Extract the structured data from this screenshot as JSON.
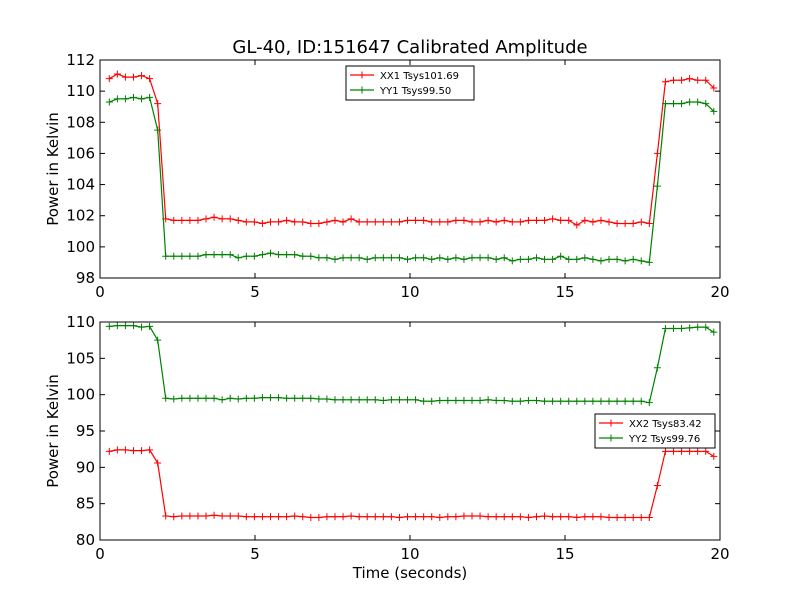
{
  "chart_data": [
    {
      "type": "line",
      "title": "GL-40, ID:151647 Calibrated Amplitude",
      "xlabel": "",
      "ylabel": "Power in Kelvin",
      "xlim": [
        0,
        20
      ],
      "ylim": [
        98,
        112
      ],
      "xticks": [
        0,
        5,
        10,
        15,
        20
      ],
      "yticks": [
        98,
        100,
        102,
        104,
        106,
        108,
        110,
        112
      ],
      "legend_position": "top-center",
      "grid": false,
      "series": [
        {
          "name": "XX1 Tsys101.69",
          "color": "#ff0000",
          "x": [
            0.3,
            0.56,
            0.82,
            1.08,
            1.34,
            1.6,
            1.86,
            2.12,
            2.38,
            2.64,
            2.9,
            3.16,
            3.42,
            3.68,
            3.94,
            4.2,
            4.46,
            4.72,
            4.98,
            5.24,
            5.5,
            5.76,
            6.02,
            6.28,
            6.54,
            6.8,
            7.06,
            7.32,
            7.58,
            7.84,
            8.1,
            8.36,
            8.62,
            8.88,
            9.14,
            9.4,
            9.66,
            9.92,
            10.18,
            10.44,
            10.7,
            10.96,
            11.22,
            11.48,
            11.74,
            12.0,
            12.26,
            12.52,
            12.78,
            13.04,
            13.3,
            13.56,
            13.82,
            14.08,
            14.34,
            14.6,
            14.86,
            15.12,
            15.38,
            15.64,
            15.9,
            16.16,
            16.42,
            16.68,
            16.94,
            17.2,
            17.46,
            17.72,
            17.98,
            18.24,
            18.5,
            18.76,
            19.02,
            19.28,
            19.54,
            19.8
          ],
          "values": [
            110.8,
            111.1,
            110.9,
            110.9,
            111.0,
            110.8,
            109.2,
            101.8,
            101.7,
            101.7,
            101.7,
            101.7,
            101.8,
            101.9,
            101.8,
            101.8,
            101.7,
            101.6,
            101.6,
            101.5,
            101.6,
            101.6,
            101.7,
            101.6,
            101.6,
            101.5,
            101.5,
            101.6,
            101.7,
            101.6,
            101.8,
            101.6,
            101.6,
            101.6,
            101.6,
            101.6,
            101.6,
            101.7,
            101.7,
            101.7,
            101.6,
            101.6,
            101.6,
            101.7,
            101.7,
            101.6,
            101.6,
            101.7,
            101.6,
            101.7,
            101.6,
            101.6,
            101.7,
            101.7,
            101.7,
            101.8,
            101.7,
            101.7,
            101.4,
            101.7,
            101.6,
            101.7,
            101.6,
            101.5,
            101.5,
            101.5,
            101.6,
            101.5,
            106.0,
            110.6,
            110.7,
            110.7,
            110.8,
            110.7,
            110.7,
            110.2
          ]
        },
        {
          "name": "YY1 Tsys99.50",
          "color": "#008000",
          "x": [
            0.3,
            0.56,
            0.82,
            1.08,
            1.34,
            1.6,
            1.86,
            2.12,
            2.38,
            2.64,
            2.9,
            3.16,
            3.42,
            3.68,
            3.94,
            4.2,
            4.46,
            4.72,
            4.98,
            5.24,
            5.5,
            5.76,
            6.02,
            6.28,
            6.54,
            6.8,
            7.06,
            7.32,
            7.58,
            7.84,
            8.1,
            8.36,
            8.62,
            8.88,
            9.14,
            9.4,
            9.66,
            9.92,
            10.18,
            10.44,
            10.7,
            10.96,
            11.22,
            11.48,
            11.74,
            12.0,
            12.26,
            12.52,
            12.78,
            13.04,
            13.3,
            13.56,
            13.82,
            14.08,
            14.34,
            14.6,
            14.86,
            15.12,
            15.38,
            15.64,
            15.9,
            16.16,
            16.42,
            16.68,
            16.94,
            17.2,
            17.46,
            17.72,
            17.98,
            18.24,
            18.5,
            18.76,
            19.02,
            19.28,
            19.54,
            19.8
          ],
          "values": [
            109.3,
            109.5,
            109.5,
            109.6,
            109.5,
            109.6,
            107.5,
            99.4,
            99.4,
            99.4,
            99.4,
            99.4,
            99.5,
            99.5,
            99.5,
            99.5,
            99.3,
            99.4,
            99.4,
            99.5,
            99.6,
            99.5,
            99.5,
            99.5,
            99.4,
            99.4,
            99.3,
            99.3,
            99.2,
            99.3,
            99.3,
            99.3,
            99.2,
            99.3,
            99.3,
            99.3,
            99.3,
            99.2,
            99.3,
            99.3,
            99.2,
            99.3,
            99.2,
            99.3,
            99.2,
            99.3,
            99.3,
            99.3,
            99.2,
            99.3,
            99.1,
            99.2,
            99.2,
            99.3,
            99.2,
            99.2,
            99.4,
            99.2,
            99.2,
            99.3,
            99.2,
            99.1,
            99.2,
            99.2,
            99.1,
            99.2,
            99.1,
            99.0,
            103.9,
            109.2,
            109.2,
            109.2,
            109.3,
            109.3,
            109.2,
            108.7
          ]
        }
      ]
    },
    {
      "type": "line",
      "title": "",
      "xlabel": "Time (seconds)",
      "ylabel": "Power in Kelvin",
      "xlim": [
        0,
        20
      ],
      "ylim": [
        80,
        110
      ],
      "xticks": [
        0,
        5,
        10,
        15,
        20
      ],
      "yticks": [
        80,
        85,
        90,
        95,
        100,
        105,
        110
      ],
      "legend_position": "center-right",
      "grid": false,
      "series": [
        {
          "name": "XX2 Tsys83.42",
          "color": "#ff0000",
          "x": [
            0.3,
            0.56,
            0.82,
            1.08,
            1.34,
            1.6,
            1.86,
            2.12,
            2.38,
            2.64,
            2.9,
            3.16,
            3.42,
            3.68,
            3.94,
            4.2,
            4.46,
            4.72,
            4.98,
            5.24,
            5.5,
            5.76,
            6.02,
            6.28,
            6.54,
            6.8,
            7.06,
            7.32,
            7.58,
            7.84,
            8.1,
            8.36,
            8.62,
            8.88,
            9.14,
            9.4,
            9.66,
            9.92,
            10.18,
            10.44,
            10.7,
            10.96,
            11.22,
            11.48,
            11.74,
            12.0,
            12.26,
            12.52,
            12.78,
            13.04,
            13.3,
            13.56,
            13.82,
            14.08,
            14.34,
            14.6,
            14.86,
            15.12,
            15.38,
            15.64,
            15.9,
            16.16,
            16.42,
            16.68,
            16.94,
            17.2,
            17.46,
            17.72,
            17.98,
            18.24,
            18.5,
            18.76,
            19.02,
            19.28,
            19.54,
            19.8
          ],
          "values": [
            92.2,
            92.4,
            92.4,
            92.3,
            92.3,
            92.4,
            90.6,
            83.3,
            83.2,
            83.3,
            83.3,
            83.3,
            83.3,
            83.4,
            83.3,
            83.3,
            83.3,
            83.2,
            83.2,
            83.2,
            83.2,
            83.2,
            83.2,
            83.3,
            83.2,
            83.1,
            83.1,
            83.2,
            83.2,
            83.2,
            83.3,
            83.2,
            83.2,
            83.2,
            83.2,
            83.2,
            83.1,
            83.2,
            83.2,
            83.2,
            83.2,
            83.1,
            83.2,
            83.2,
            83.3,
            83.3,
            83.3,
            83.2,
            83.2,
            83.2,
            83.2,
            83.2,
            83.1,
            83.2,
            83.3,
            83.2,
            83.2,
            83.2,
            83.1,
            83.2,
            83.2,
            83.2,
            83.1,
            83.1,
            83.1,
            83.1,
            83.1,
            83.1,
            87.5,
            92.2,
            92.2,
            92.2,
            92.2,
            92.2,
            92.2,
            91.5
          ]
        },
        {
          "name": "YY2 Tsys99.76",
          "color": "#008000",
          "x": [
            0.3,
            0.56,
            0.82,
            1.08,
            1.34,
            1.6,
            1.86,
            2.12,
            2.38,
            2.64,
            2.9,
            3.16,
            3.42,
            3.68,
            3.94,
            4.2,
            4.46,
            4.72,
            4.98,
            5.24,
            5.5,
            5.76,
            6.02,
            6.28,
            6.54,
            6.8,
            7.06,
            7.32,
            7.58,
            7.84,
            8.1,
            8.36,
            8.62,
            8.88,
            9.14,
            9.4,
            9.66,
            9.92,
            10.18,
            10.44,
            10.7,
            10.96,
            11.22,
            11.48,
            11.74,
            12.0,
            12.26,
            12.52,
            12.78,
            13.04,
            13.3,
            13.56,
            13.82,
            14.08,
            14.34,
            14.6,
            14.86,
            15.12,
            15.38,
            15.64,
            15.9,
            16.16,
            16.42,
            16.68,
            16.94,
            17.2,
            17.46,
            17.72,
            17.98,
            18.24,
            18.5,
            18.76,
            19.02,
            19.28,
            19.54,
            19.8
          ],
          "values": [
            109.4,
            109.5,
            109.5,
            109.5,
            109.3,
            109.4,
            107.5,
            99.5,
            99.4,
            99.5,
            99.5,
            99.5,
            99.5,
            99.5,
            99.3,
            99.5,
            99.4,
            99.5,
            99.5,
            99.6,
            99.6,
            99.6,
            99.5,
            99.5,
            99.5,
            99.5,
            99.4,
            99.4,
            99.3,
            99.3,
            99.3,
            99.3,
            99.3,
            99.3,
            99.2,
            99.3,
            99.3,
            99.3,
            99.3,
            99.1,
            99.1,
            99.2,
            99.2,
            99.2,
            99.2,
            99.2,
            99.2,
            99.3,
            99.2,
            99.2,
            99.1,
            99.1,
            99.2,
            99.2,
            99.1,
            99.1,
            99.1,
            99.1,
            99.1,
            99.1,
            99.1,
            99.1,
            99.1,
            99.1,
            99.1,
            99.1,
            99.1,
            98.9,
            103.7,
            109.1,
            109.1,
            109.1,
            109.2,
            109.3,
            109.3,
            108.6
          ]
        }
      ]
    }
  ]
}
